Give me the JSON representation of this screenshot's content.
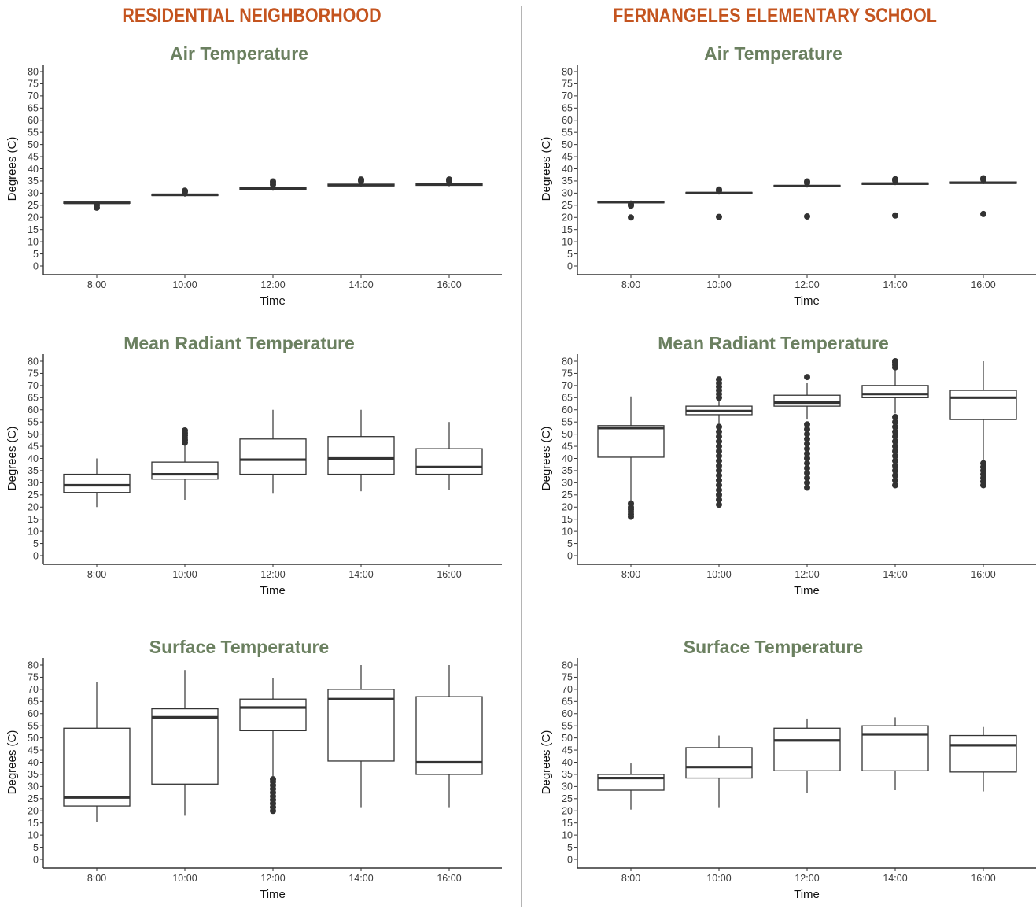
{
  "columns": [
    {
      "title": "RESIDENTIAL NEIGHBORHOOD"
    },
    {
      "title": "FERNANGELES ELEMENTARY SCHOOL"
    }
  ],
  "colors": {
    "heading": "#c4541f",
    "panel_title": "#6b8060",
    "box": "#333333"
  },
  "chart_data": [
    {
      "type": "box",
      "column": "RESIDENTIAL NEIGHBORHOOD",
      "title": "Air Temperature",
      "xlabel": "Time",
      "ylabel": "Degrees (C)",
      "ylim": [
        0,
        80
      ],
      "categories": [
        "8:00",
        "10:00",
        "12:00",
        "14:00",
        "16:00"
      ],
      "boxes": [
        {
          "whisker_low": 25.3,
          "q1": 25.8,
          "median": 26.0,
          "q3": 26.3,
          "whisker_high": 26.6,
          "outliers_low": [
            24,
            25
          ],
          "outliers_high": []
        },
        {
          "whisker_low": 28.5,
          "q1": 29.0,
          "median": 29.3,
          "q3": 29.6,
          "whisker_high": 30.0,
          "outliers_low": [],
          "outliers_high": [
            30.5,
            31
          ]
        },
        {
          "whisker_low": 31.0,
          "q1": 31.6,
          "median": 32.0,
          "q3": 32.4,
          "whisker_high": 33.0,
          "outliers_low": [],
          "outliers_high": [
            33.5,
            34.2,
            34.8
          ]
        },
        {
          "whisker_low": 32.5,
          "q1": 33.0,
          "median": 33.3,
          "q3": 33.7,
          "whisker_high": 34.3,
          "outliers_low": [],
          "outliers_high": [
            35,
            35.6
          ]
        },
        {
          "whisker_low": 32.8,
          "q1": 33.2,
          "median": 33.6,
          "q3": 34.0,
          "whisker_high": 34.5,
          "outliers_low": [],
          "outliers_high": [
            35,
            35.6
          ]
        }
      ]
    },
    {
      "type": "box",
      "column": "FERNANGELES ELEMENTARY SCHOOL",
      "title": "Air Temperature",
      "xlabel": "Time",
      "ylabel": "Degrees (C)",
      "ylim": [
        0,
        80
      ],
      "categories": [
        "8:00",
        "10:00",
        "12:00",
        "14:00",
        "16:00"
      ],
      "boxes": [
        {
          "whisker_low": 25.6,
          "q1": 26.0,
          "median": 26.3,
          "q3": 26.6,
          "whisker_high": 27.0,
          "outliers_low": [
            20,
            24.8,
            25.3
          ],
          "outliers_high": []
        },
        {
          "whisker_low": 29.4,
          "q1": 29.7,
          "median": 30.0,
          "q3": 30.3,
          "whisker_high": 30.6,
          "outliers_low": [
            20.2
          ],
          "outliers_high": [
            31,
            31.5
          ]
        },
        {
          "whisker_low": 32.3,
          "q1": 32.6,
          "median": 32.9,
          "q3": 33.2,
          "whisker_high": 33.6,
          "outliers_low": [
            20.4
          ],
          "outliers_high": [
            34.2,
            34.8
          ]
        },
        {
          "whisker_low": 33.3,
          "q1": 33.6,
          "median": 33.9,
          "q3": 34.2,
          "whisker_high": 34.6,
          "outliers_low": [
            20.8
          ],
          "outliers_high": [
            35.2,
            35.7
          ]
        },
        {
          "whisker_low": 33.7,
          "q1": 34.0,
          "median": 34.3,
          "q3": 34.6,
          "whisker_high": 35.0,
          "outliers_low": [
            21.4
          ],
          "outliers_high": [
            35.6,
            36.1
          ]
        }
      ]
    },
    {
      "type": "box",
      "column": "RESIDENTIAL NEIGHBORHOOD",
      "title": "Mean Radiant Temperature",
      "xlabel": "Time",
      "ylabel": "Degrees (C)",
      "ylim": [
        0,
        80
      ],
      "categories": [
        "8:00",
        "10:00",
        "12:00",
        "14:00",
        "16:00"
      ],
      "boxes": [
        {
          "whisker_low": 20,
          "q1": 26,
          "median": 29,
          "q3": 33.5,
          "whisker_high": 40,
          "outliers_low": [],
          "outliers_high": []
        },
        {
          "whisker_low": 23,
          "q1": 31.5,
          "median": 33.5,
          "q3": 38.5,
          "whisker_high": 45.5,
          "outliers_low": [],
          "outliers_high": [
            46.5,
            47.5,
            48.5,
            49.5,
            50.5,
            51.5
          ]
        },
        {
          "whisker_low": 25.5,
          "q1": 33.5,
          "median": 39.5,
          "q3": 48,
          "whisker_high": 60,
          "outliers_low": [],
          "outliers_high": []
        },
        {
          "whisker_low": 26.5,
          "q1": 33.5,
          "median": 40,
          "q3": 49,
          "whisker_high": 60,
          "outliers_low": [],
          "outliers_high": []
        },
        {
          "whisker_low": 27,
          "q1": 33.5,
          "median": 36.5,
          "q3": 44,
          "whisker_high": 55,
          "outliers_low": [],
          "outliers_high": []
        }
      ]
    },
    {
      "type": "box",
      "column": "FERNANGELES ELEMENTARY SCHOOL",
      "title": "Mean Radiant Temperature",
      "xlabel": "Time",
      "ylabel": "Degrees (C)",
      "ylim": [
        0,
        80
      ],
      "categories": [
        "8:00",
        "10:00",
        "12:00",
        "14:00",
        "16:00"
      ],
      "boxes": [
        {
          "whisker_low": 22.5,
          "q1": 40.5,
          "median": 52.5,
          "q3": 53.5,
          "whisker_high": 65.5,
          "outliers_low": [
            16,
            17,
            18,
            19,
            20,
            21.5
          ],
          "outliers_high": []
        },
        {
          "whisker_low": 54,
          "q1": 58,
          "median": 59.5,
          "q3": 61.5,
          "whisker_high": 64,
          "outliers_low": [
            21,
            23,
            25,
            27,
            29,
            31,
            33,
            35,
            37,
            39,
            41,
            43,
            45,
            47,
            49,
            51,
            53
          ],
          "outliers_high": [
            65,
            66.5,
            68,
            69.5,
            71,
            72.5
          ]
        },
        {
          "whisker_low": 56,
          "q1": 61.5,
          "median": 63,
          "q3": 66,
          "whisker_high": 71,
          "outliers_low": [
            28,
            30,
            32,
            34,
            36,
            38,
            40,
            42,
            44,
            46,
            48,
            50,
            52,
            54
          ],
          "outliers_high": [
            73.5
          ]
        },
        {
          "whisker_low": 58.5,
          "q1": 65,
          "median": 66.5,
          "q3": 70,
          "whisker_high": 76.5,
          "outliers_low": [
            29,
            31,
            33,
            35,
            37,
            39,
            41,
            43,
            45,
            47,
            49,
            51,
            53,
            55,
            57
          ],
          "outliers_high": [
            77.5,
            78.5,
            79.5,
            80
          ]
        },
        {
          "whisker_low": 39,
          "q1": 56,
          "median": 65,
          "q3": 68,
          "whisker_high": 80,
          "outliers_low": [
            29,
            30.5,
            32,
            33.5,
            35,
            36.5,
            38
          ],
          "outliers_high": []
        }
      ]
    },
    {
      "type": "box",
      "column": "RESIDENTIAL NEIGHBORHOOD",
      "title": "Surface Temperature",
      "xlabel": "Time",
      "ylabel": "Degrees (C)",
      "ylim": [
        0,
        80
      ],
      "categories": [
        "8:00",
        "10:00",
        "12:00",
        "14:00",
        "16:00"
      ],
      "boxes": [
        {
          "whisker_low": 15.5,
          "q1": 22,
          "median": 25.5,
          "q3": 54,
          "whisker_high": 73,
          "outliers_low": [],
          "outliers_high": []
        },
        {
          "whisker_low": 18,
          "q1": 31,
          "median": 58.5,
          "q3": 62,
          "whisker_high": 78,
          "outliers_low": [],
          "outliers_high": []
        },
        {
          "whisker_low": 34,
          "q1": 53,
          "median": 62.5,
          "q3": 66,
          "whisker_high": 74.5,
          "outliers_low": [
            20,
            21.5,
            23,
            24.5,
            26,
            27.5,
            29,
            30.5,
            32,
            33
          ],
          "outliers_high": []
        },
        {
          "whisker_low": 21.5,
          "q1": 40.5,
          "median": 66,
          "q3": 70,
          "whisker_high": 80,
          "outliers_low": [],
          "outliers_high": []
        },
        {
          "whisker_low": 21.5,
          "q1": 35,
          "median": 40,
          "q3": 67,
          "whisker_high": 80,
          "outliers_low": [],
          "outliers_high": []
        }
      ]
    },
    {
      "type": "box",
      "column": "FERNANGELES ELEMENTARY SCHOOL",
      "title": "Surface Temperature",
      "xlabel": "Time",
      "ylabel": "Degrees (C)",
      "ylim": [
        0,
        80
      ],
      "categories": [
        "8:00",
        "10:00",
        "12:00",
        "14:00",
        "16:00"
      ],
      "boxes": [
        {
          "whisker_low": 20.5,
          "q1": 28.5,
          "median": 33.5,
          "q3": 35,
          "whisker_high": 39.5,
          "outliers_low": [],
          "outliers_high": []
        },
        {
          "whisker_low": 21.5,
          "q1": 33.5,
          "median": 38,
          "q3": 46,
          "whisker_high": 51,
          "outliers_low": [],
          "outliers_high": []
        },
        {
          "whisker_low": 27.5,
          "q1": 36.5,
          "median": 49,
          "q3": 54,
          "whisker_high": 58,
          "outliers_low": [],
          "outliers_high": []
        },
        {
          "whisker_low": 28.5,
          "q1": 36.5,
          "median": 51.5,
          "q3": 55,
          "whisker_high": 58.5,
          "outliers_low": [],
          "outliers_high": []
        },
        {
          "whisker_low": 28,
          "q1": 36,
          "median": 47,
          "q3": 51,
          "whisker_high": 54.5,
          "outliers_low": [],
          "outliers_high": []
        }
      ]
    }
  ]
}
